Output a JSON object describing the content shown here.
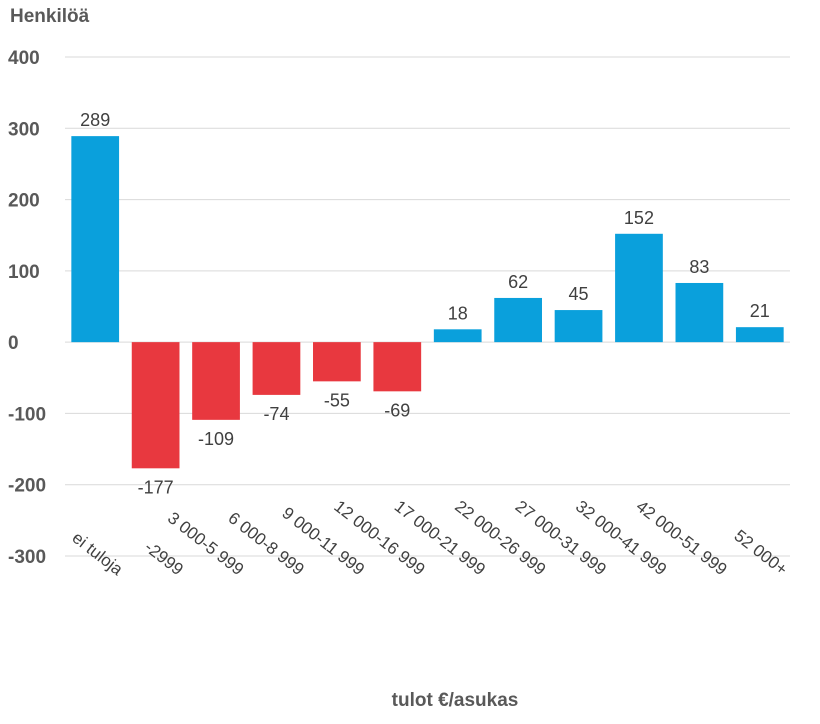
{
  "chart_data": {
    "type": "bar",
    "ylabel": "Henkilöä",
    "xlabel": "tulot €/asukas",
    "categories": [
      "ei tuloja",
      "-2999",
      "3 000-5 999",
      "6 000-8 999",
      "9 000-11 999",
      "12 000-16 999",
      "17 000-21 999",
      "22 000-26 999",
      "27 000-31 999",
      "32 000-41 999",
      "42 000-51 999",
      "52 000+"
    ],
    "values": [
      289,
      -177,
      -109,
      -74,
      -55,
      -69,
      18,
      62,
      45,
      152,
      83,
      21
    ],
    "ylim": [
      -300,
      400
    ],
    "yticks": [
      400,
      300,
      200,
      100,
      0,
      -100,
      -200,
      -300
    ],
    "ytick_labels": [
      "400",
      "300",
      "200",
      "100",
      "0",
      "-100",
      "-200",
      "-300"
    ],
    "grid": true,
    "colors": {
      "positive": "#0aa0dc",
      "negative": "#e8383f"
    }
  }
}
